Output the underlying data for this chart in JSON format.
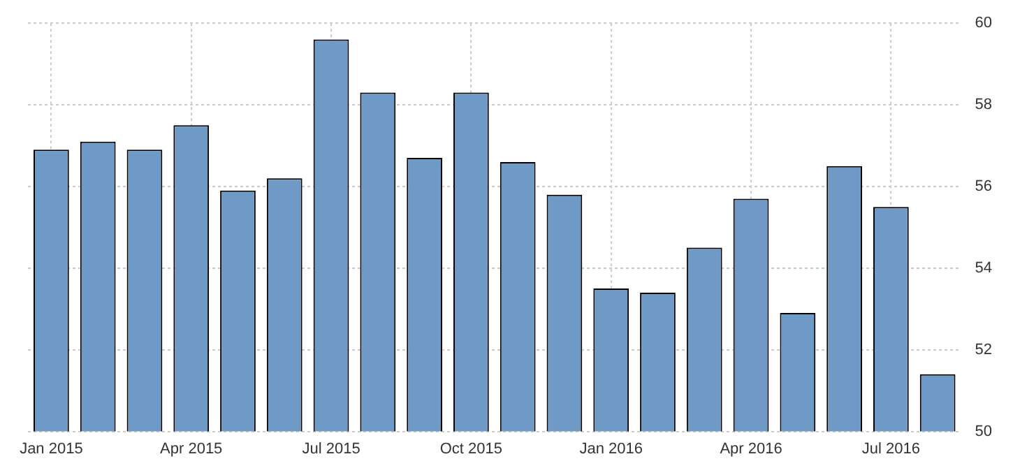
{
  "chart_data": {
    "type": "bar",
    "categories": [
      "Jan 2015",
      null,
      null,
      "Apr 2015",
      null,
      null,
      "Jul 2015",
      null,
      null,
      "Oct 2015",
      null,
      null,
      "Jan 2016",
      null,
      null,
      "Apr 2016",
      null,
      null,
      "Jul 2016",
      null
    ],
    "values": [
      56.9,
      57.1,
      56.9,
      57.5,
      55.9,
      56.2,
      59.6,
      58.3,
      56.7,
      58.3,
      56.6,
      55.8,
      53.5,
      53.4,
      54.5,
      55.7,
      52.9,
      56.5,
      55.5,
      51.4
    ],
    "color": "#6f9ac6",
    "ylim": [
      50,
      60
    ],
    "yticks": [
      50,
      52,
      54,
      56,
      58,
      60
    ],
    "grid": true
  }
}
